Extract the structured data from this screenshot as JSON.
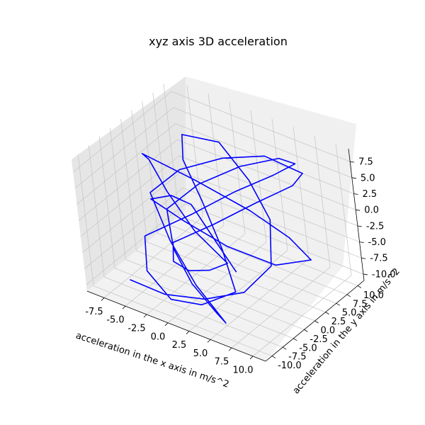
{
  "chart_data": {
    "type": "line3d",
    "title": "xyz axis 3D acceleration",
    "xlabel": "acceleration in the x axis in m/s^2",
    "ylabel": "acceleration in the y axis in m/s^2",
    "zlabel": "",
    "xlim": [
      -9.5,
      11.5
    ],
    "ylim": [
      -11.5,
      11.5
    ],
    "zlim": [
      -11.0,
      9.5
    ],
    "x_ticks": [
      "-7.5",
      "-5.0",
      "-2.5",
      "0.0",
      "2.5",
      "5.0",
      "7.5",
      "10.0"
    ],
    "y_ticks": [
      "-10.0",
      "-7.5",
      "-5.0",
      "-2.5",
      "0.0",
      "2.5",
      "5.0",
      "7.5",
      "10.0"
    ],
    "z_ticks": [
      "-10.0",
      "-7.5",
      "-5.0",
      "-2.5",
      "0.0",
      "2.5",
      "5.0",
      "7.5"
    ],
    "x_tick_values": [
      -7.5,
      -5.0,
      -2.5,
      0.0,
      2.5,
      5.0,
      7.5,
      10.0
    ],
    "y_tick_values": [
      -10.0,
      -7.5,
      -5.0,
      -2.5,
      0.0,
      2.5,
      5.0,
      7.5,
      10.0
    ],
    "z_tick_values": [
      -10.0,
      -7.5,
      -5.0,
      -2.5,
      0.0,
      2.5,
      5.0,
      7.5
    ],
    "grid": true,
    "series_color": "#0000ff",
    "series": [
      {
        "x": [
          -5.5,
          -2.0,
          2.0,
          5.5,
          7.5,
          6.0,
          2.5,
          -1.5,
          -4.5,
          -3.0,
          0.5,
          4.0,
          6.5,
          3.0,
          -1.0,
          -5.0,
          -6.5,
          -2.5,
          1.5,
          5.0,
          7.0,
          4.5,
          0.5,
          -3.5,
          -6.0,
          -4.0,
          -0.5,
          3.5,
          6.0,
          2.0,
          -2.0,
          -5.5,
          -3.0,
          1.0,
          4.5,
          7.5,
          5.5,
          1.5,
          -2.5,
          -6.0,
          -4.5,
          -1.0,
          3.0,
          6.5,
          3.5,
          -0.5,
          -4.0,
          -6.5,
          -2.0,
          2.5,
          5.5,
          7.0,
          4.0,
          0.0,
          -3.5,
          -5.5,
          -1.5,
          2.0,
          5.0,
          6.0
        ],
        "y": [
          -9.0,
          -8.0,
          -6.5,
          -4.0,
          -1.0,
          2.5,
          5.0,
          6.5,
          4.0,
          1.0,
          -2.0,
          -5.0,
          -7.5,
          -9.0,
          -8.5,
          -6.0,
          -3.0,
          0.5,
          3.5,
          6.0,
          7.5,
          8.5,
          7.0,
          4.5,
          1.5,
          -1.5,
          -4.5,
          -7.0,
          -9.5,
          -8.0,
          -5.5,
          -2.5,
          0.0,
          2.5,
          5.5,
          8.0,
          9.0,
          7.5,
          5.0,
          2.0,
          -1.0,
          -4.0,
          -6.5,
          -8.5,
          -9.5,
          -7.5,
          -4.5,
          -1.5,
          1.5,
          4.5,
          7.0,
          8.5,
          6.0,
          3.0,
          0.5,
          -2.5,
          -5.0,
          -7.0,
          -8.0,
          -6.0
        ],
        "z": [
          -8.5,
          -9.5,
          -9.0,
          -7.5,
          -4.0,
          0.5,
          3.5,
          6.5,
          7.5,
          6.0,
          3.0,
          -1.0,
          -5.0,
          -8.0,
          -9.5,
          -8.5,
          -5.5,
          -2.0,
          2.0,
          5.0,
          7.0,
          6.0,
          3.5,
          0.0,
          -3.5,
          -7.0,
          -9.0,
          -10.0,
          -9.0,
          -6.0,
          -2.5,
          1.5,
          5.0,
          7.5,
          8.0,
          5.5,
          2.0,
          -2.0,
          -6.0,
          -9.0,
          -9.5,
          -7.5,
          -4.0,
          0.0,
          4.0,
          7.0,
          8.5,
          6.5,
          3.0,
          -1.0,
          -5.0,
          -8.5,
          -9.5,
          -7.0,
          -3.5,
          0.5,
          4.5,
          6.0,
          2.5,
          -3.0
        ]
      }
    ]
  }
}
